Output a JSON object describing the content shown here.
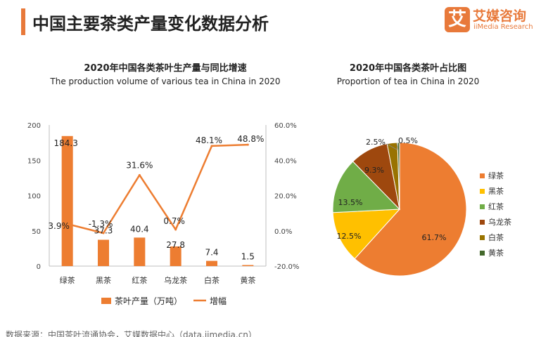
{
  "page": {
    "title": "中国主要茶类产量变化数据分析",
    "source": "数据来源：中国茶叶流通协会，艾媒数据中心（data.iimedia.cn）"
  },
  "logo": {
    "mark": "艾",
    "name_cn": "艾媒咨询",
    "name_en": "iiMedia Research"
  },
  "colors": {
    "accent": "#e8793a",
    "bar": "#ed7d31",
    "line": "#ed7d31"
  },
  "chart_data": [
    {
      "type": "bar",
      "title": "2020年中国各类茶叶生产量与同比增速",
      "subtitle": "The production volume of various tea in China in 2020",
      "categories": [
        "绿茶",
        "黑茶",
        "红茶",
        "乌龙茶",
        "白茶",
        "黄茶"
      ],
      "series": [
        {
          "name": "茶叶产量（万吨）",
          "type": "bar",
          "axis": "left",
          "values": [
            184.3,
            37.3,
            40.4,
            27.8,
            7.4,
            1.5
          ],
          "labels": [
            "184.3",
            "37.3",
            "40.4",
            "27.8",
            "7.4",
            "1.5"
          ]
        },
        {
          "name": "增幅",
          "type": "line",
          "axis": "right",
          "values": [
            3.9,
            -1.3,
            31.6,
            0.7,
            48.1,
            48.8
          ],
          "labels": [
            "3.9%",
            "-1.3%",
            "31.6%",
            "0.7%",
            "48.1%",
            "48.8%"
          ]
        }
      ],
      "y_left": {
        "ticks": [
          "0",
          "50",
          "100",
          "150",
          "200"
        ],
        "range": [
          0,
          200
        ]
      },
      "y_right": {
        "ticks": [
          "-20.0%",
          "0.0%",
          "20.0%",
          "40.0%",
          "60.0%"
        ],
        "range": [
          -20,
          60
        ]
      },
      "grid": false,
      "legend_position": "bottom"
    },
    {
      "type": "pie",
      "title": "2020年中国各类茶叶占比图",
      "subtitle": "Proportion of tea in China in 2020",
      "slices": [
        {
          "label": "绿茶",
          "value": 61.7,
          "text": "61.7%",
          "color": "#ed7d31"
        },
        {
          "label": "黑茶",
          "value": 12.5,
          "text": "12.5%",
          "color": "#ffc000"
        },
        {
          "label": "红茶",
          "value": 13.5,
          "text": "13.5%",
          "color": "#70ad47"
        },
        {
          "label": "乌龙茶",
          "value": 9.3,
          "text": "9.3%",
          "color": "#9e480e"
        },
        {
          "label": "白茶",
          "value": 2.5,
          "text": "2.5%",
          "color": "#997300"
        },
        {
          "label": "黄茶",
          "value": 0.5,
          "text": "0.5%",
          "color": "#43682b"
        }
      ],
      "legend_position": "right"
    }
  ]
}
